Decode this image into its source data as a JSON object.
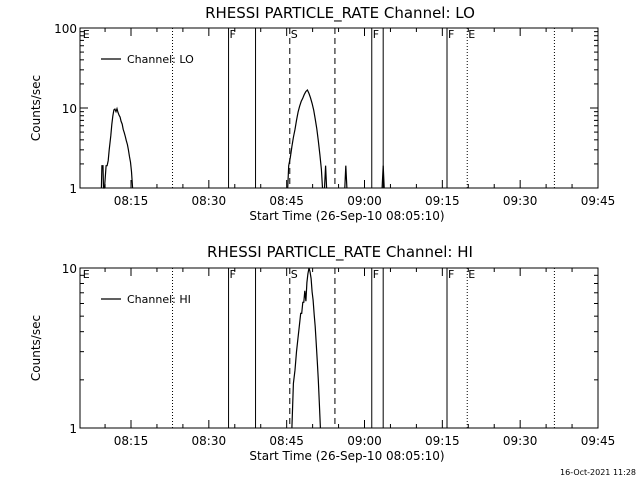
{
  "footer": {
    "timestamp": "16-Oct-2021 11:28"
  },
  "chart_data": [
    {
      "type": "line",
      "title": "RHESSI PARTICLE_RATE Channel: LO",
      "xlabel": "Start Time (26-Sep-10 08:05:10)",
      "ylabel": "Counts/sec",
      "x_unit": "minutes after 08:00",
      "xlim": [
        5.17,
        105
      ],
      "x_ticks": [
        15,
        30,
        45,
        60,
        75,
        90,
        105
      ],
      "x_tick_labels": [
        "08:15",
        "08:30",
        "08:45",
        "09:00",
        "09:15",
        "09:30",
        "09:45"
      ],
      "y_scale": "log",
      "ylim": [
        1,
        100
      ],
      "y_ticks": [
        1,
        10,
        100
      ],
      "y_tick_labels": [
        "1",
        "10",
        "100"
      ],
      "legend": {
        "position": "top-left",
        "entries": [
          "Channel: LO"
        ]
      },
      "series": [
        {
          "name": "Channel: LO",
          "segments": [
            [
              [
                9.3,
                1
              ],
              [
                9.4,
                1.9
              ],
              [
                9.6,
                1.9
              ],
              [
                9.7,
                1
              ],
              [
                9.9,
                1
              ],
              [
                10.2,
                1.9
              ],
              [
                10.4,
                1.9
              ],
              [
                10.6,
                2.2
              ],
              [
                10.8,
                3.0
              ],
              [
                11.1,
                4.5
              ],
              [
                11.3,
                6.2
              ],
              [
                11.5,
                7.9
              ],
              [
                11.7,
                9.5
              ],
              [
                11.9,
                9.7
              ],
              [
                12.1,
                9.0
              ],
              [
                12.3,
                9.8
              ],
              [
                12.5,
                8.8
              ],
              [
                12.7,
                8.1
              ],
              [
                12.9,
                7.7
              ],
              [
                13.1,
                6.8
              ],
              [
                13.3,
                6.3
              ],
              [
                13.5,
                5.4
              ],
              [
                13.7,
                4.9
              ],
              [
                13.9,
                4.4
              ],
              [
                14.1,
                3.9
              ],
              [
                14.3,
                3.5
              ],
              [
                14.5,
                3.0
              ],
              [
                14.7,
                2.5
              ],
              [
                14.9,
                2.1
              ],
              [
                15.1,
                1.6
              ],
              [
                15.3,
                1.0
              ]
            ],
            [
              [
                45.2,
                1
              ],
              [
                45.4,
                1.9
              ],
              [
                45.7,
                2.4
              ],
              [
                46.0,
                3.3
              ],
              [
                46.3,
                4.3
              ],
              [
                46.6,
                5.4
              ],
              [
                46.9,
                7.0
              ],
              [
                47.2,
                8.9
              ],
              [
                47.5,
                10.5
              ],
              [
                47.8,
                12.1
              ],
              [
                48.1,
                13.3
              ],
              [
                48.4,
                14.8
              ],
              [
                48.7,
                16.1
              ],
              [
                49.0,
                16.8
              ],
              [
                49.3,
                15.2
              ],
              [
                49.6,
                13.4
              ],
              [
                49.9,
                11.4
              ],
              [
                50.2,
                9.4
              ],
              [
                50.5,
                7.3
              ],
              [
                50.8,
                5.5
              ],
              [
                51.1,
                3.9
              ],
              [
                51.4,
                2.6
              ],
              [
                51.7,
                1.7
              ],
              [
                51.9,
                1.0
              ]
            ],
            [
              [
                52.3,
                1
              ],
              [
                52.5,
                1.9
              ],
              [
                52.7,
                1.0
              ]
            ],
            [
              [
                56.2,
                1
              ],
              [
                56.4,
                1.9
              ],
              [
                56.6,
                1.0
              ]
            ],
            [
              [
                63.4,
                1
              ],
              [
                63.6,
                1.9
              ],
              [
                63.8,
                1.0
              ]
            ]
          ]
        }
      ],
      "event_markers": [
        {
          "label": "E",
          "x": 5.5,
          "style": "none"
        },
        {
          "label": "",
          "x": 23.0,
          "style": "dotted"
        },
        {
          "label": "F",
          "x": 33.8,
          "style": "solid"
        },
        {
          "label": "",
          "x": 39.0,
          "style": "solid"
        },
        {
          "label": "S",
          "x": 45.6,
          "style": "dashed"
        },
        {
          "label": "",
          "x": 54.3,
          "style": "dashed"
        },
        {
          "label": "F",
          "x": 61.4,
          "style": "solid"
        },
        {
          "label": "",
          "x": 63.6,
          "style": "solid"
        },
        {
          "label": "F",
          "x": 75.9,
          "style": "solid"
        },
        {
          "label": "E",
          "x": 79.8,
          "style": "dotted"
        },
        {
          "label": "",
          "x": 96.6,
          "style": "dotted"
        }
      ]
    },
    {
      "type": "line",
      "title": "RHESSI PARTICLE_RATE Channel: HI",
      "xlabel": "Start Time (26-Sep-10 08:05:10)",
      "ylabel": "Counts/sec",
      "x_unit": "minutes after 08:00",
      "xlim": [
        5.17,
        105
      ],
      "x_ticks": [
        15,
        30,
        45,
        60,
        75,
        90,
        105
      ],
      "x_tick_labels": [
        "08:15",
        "08:30",
        "08:45",
        "09:00",
        "09:15",
        "09:30",
        "09:45"
      ],
      "y_scale": "log",
      "ylim": [
        1,
        10
      ],
      "y_ticks": [
        1,
        10
      ],
      "y_tick_labels": [
        "1",
        "10"
      ],
      "legend": {
        "position": "top-left",
        "entries": [
          "Channel: HI"
        ]
      },
      "series": [
        {
          "name": "Channel: HI",
          "segments": [
            [
              [
                46.0,
                1
              ],
              [
                46.3,
                1.9
              ],
              [
                46.6,
                2.3
              ],
              [
                46.9,
                3.0
              ],
              [
                47.2,
                3.7
              ],
              [
                47.5,
                4.5
              ],
              [
                47.7,
                5.2
              ],
              [
                47.9,
                5.2
              ],
              [
                48.1,
                6.1
              ],
              [
                48.3,
                6.1
              ],
              [
                48.5,
                7.2
              ],
              [
                48.7,
                6.2
              ],
              [
                48.9,
                8.1
              ],
              [
                49.1,
                9.2
              ],
              [
                49.3,
                10.0
              ],
              [
                49.5,
                9.5
              ],
              [
                49.7,
                8.6
              ],
              [
                49.9,
                7.1
              ],
              [
                50.1,
                6.3
              ],
              [
                50.3,
                5.1
              ],
              [
                50.5,
                4.3
              ],
              [
                50.7,
                3.4
              ],
              [
                50.9,
                2.6
              ],
              [
                51.1,
                2.0
              ],
              [
                51.3,
                1.4
              ],
              [
                51.5,
                1.0
              ]
            ]
          ]
        }
      ],
      "event_markers": [
        {
          "label": "E",
          "x": 5.5,
          "style": "none"
        },
        {
          "label": "",
          "x": 23.0,
          "style": "dotted"
        },
        {
          "label": "F",
          "x": 33.8,
          "style": "solid"
        },
        {
          "label": "",
          "x": 39.0,
          "style": "solid"
        },
        {
          "label": "S",
          "x": 45.6,
          "style": "dashed"
        },
        {
          "label": "",
          "x": 54.3,
          "style": "dashed"
        },
        {
          "label": "F",
          "x": 61.4,
          "style": "solid"
        },
        {
          "label": "",
          "x": 63.6,
          "style": "solid"
        },
        {
          "label": "F",
          "x": 75.9,
          "style": "solid"
        },
        {
          "label": "E",
          "x": 79.8,
          "style": "dotted"
        },
        {
          "label": "",
          "x": 96.6,
          "style": "dotted"
        }
      ]
    }
  ]
}
